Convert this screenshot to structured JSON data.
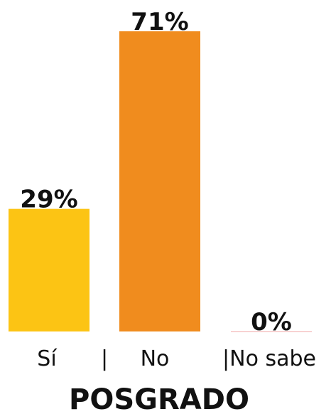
{
  "chart_data": {
    "type": "bar",
    "title": "POSGRADO",
    "categories": [
      "Sí",
      "No",
      "No sabe"
    ],
    "values": [
      29,
      71,
      0
    ],
    "data_labels": [
      "29%",
      "71%",
      "0%"
    ],
    "category_label_text": [
      "Sí",
      "|",
      "No",
      "|No sabe"
    ],
    "colors": [
      "#FCC414",
      "#F08C1E",
      "#F2A9A9"
    ],
    "ylim": [
      0,
      71
    ],
    "grid": false,
    "legend": "none"
  }
}
